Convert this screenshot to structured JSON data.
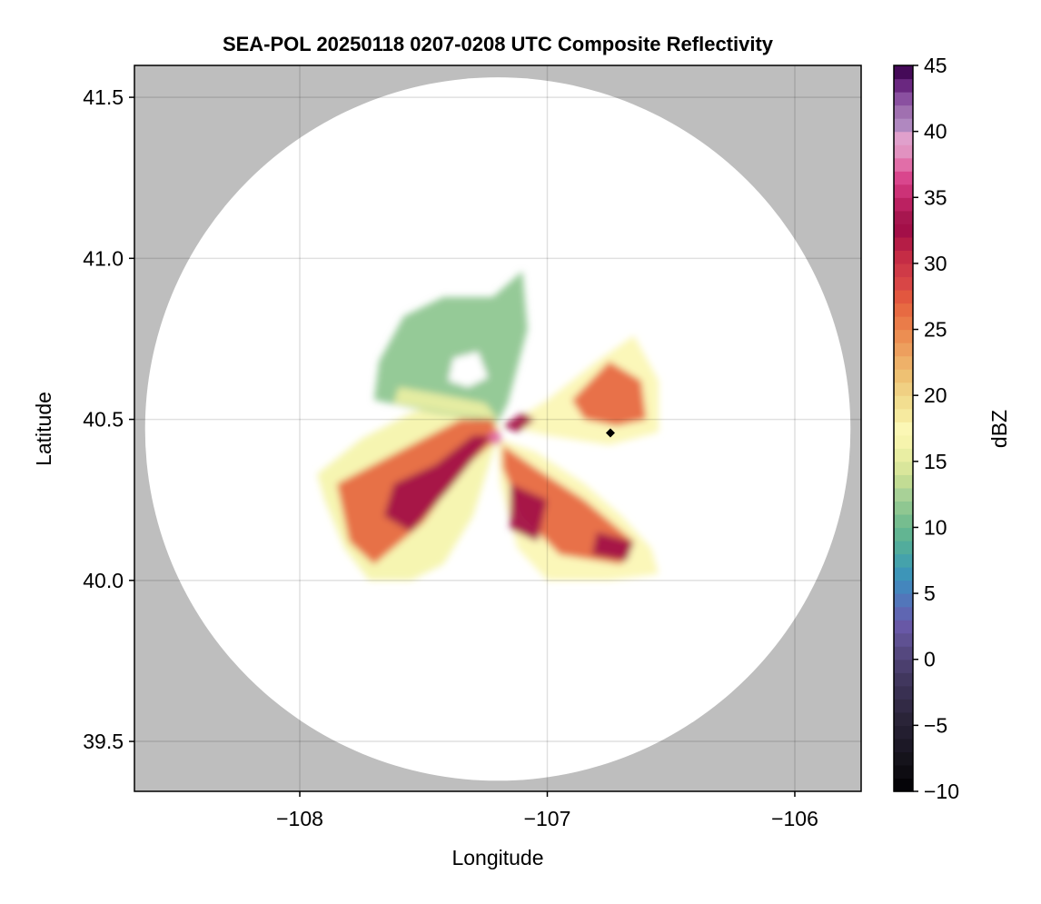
{
  "chart_data": {
    "type": "heatmap",
    "title": "SEA-POL 20250118 0207-0208 UTC Composite Reflectivity",
    "xlabel": "Longitude",
    "ylabel": "Latitude",
    "xlim": [
      -108.668,
      -105.732
    ],
    "ylim": [
      39.345,
      41.599
    ],
    "xticks": [
      -108,
      -107,
      -106
    ],
    "xtick_labels": [
      "−108",
      "−107",
      "−106"
    ],
    "yticks": [
      39.5,
      40.0,
      40.5,
      41.0,
      41.5
    ],
    "ytick_labels": [
      "39.5",
      "40.0",
      "40.5",
      "41.0",
      "41.5"
    ],
    "grid": true,
    "background_color": "#bebebe",
    "radar": {
      "center_lon": -107.2,
      "center_lat": 40.47,
      "range_lon_deg": 1.425,
      "range_lat_deg": 1.092
    },
    "marker": {
      "lon": -106.745,
      "lat": 40.458,
      "shape": "diamond",
      "color": "#000000"
    },
    "colorbar": {
      "label": "dBZ",
      "range": [
        -10,
        45
      ],
      "ticks": [
        -10,
        -5,
        0,
        5,
        10,
        15,
        20,
        25,
        30,
        35,
        40,
        45
      ],
      "tick_labels": [
        "−10",
        "−5",
        "0",
        "5",
        "10",
        "15",
        "20",
        "25",
        "30",
        "35",
        "40",
        "45"
      ],
      "colors": [
        "#050408",
        "#0e0c12",
        "#15131b",
        "#1c1826",
        "#231e30",
        "#2a2438",
        "#322a45",
        "#393052",
        "#41375e",
        "#4b3f6e",
        "#55487f",
        "#5f5192",
        "#6858a6",
        "#5f66b2",
        "#5276ba",
        "#4486bd",
        "#3d95b8",
        "#45a2ab",
        "#52ac9c",
        "#62b592",
        "#76bd8f",
        "#8fc791",
        "#a8d197",
        "#c2dc94",
        "#d9e69b",
        "#e9eea3",
        "#f6f4ad",
        "#fbf7b5",
        "#f6ea9f",
        "#f2de90",
        "#f0d083",
        "#eec173",
        "#eeb169",
        "#ed9f5e",
        "#ec8e52",
        "#ea7c49",
        "#e76a42",
        "#e2573f",
        "#d84646",
        "#cf3a47",
        "#c52c45",
        "#b51d46",
        "#a30f48",
        "#a7164f",
        "#bb2161",
        "#cc3277",
        "#d9468d",
        "#e16ea8",
        "#e192c0",
        "#e0a0cc",
        "#b088c0",
        "#a070b0",
        "#8a50a0",
        "#6a2880",
        "#450a58"
      ]
    },
    "echo_regions": [
      {
        "dbz": 16,
        "poly": [
          [
            -107.93,
            40.33
          ],
          [
            -107.75,
            40.44
          ],
          [
            -107.55,
            40.52
          ],
          [
            -107.3,
            40.57
          ],
          [
            -107.19,
            40.47
          ],
          [
            -107.3,
            40.2
          ],
          [
            -107.42,
            40.05
          ],
          [
            -107.55,
            40.0
          ],
          [
            -107.72,
            40.0
          ],
          [
            -107.82,
            40.1
          ],
          [
            -107.9,
            40.25
          ]
        ]
      },
      {
        "dbz": 11,
        "poly": [
          [
            -107.68,
            40.68
          ],
          [
            -107.58,
            40.82
          ],
          [
            -107.42,
            40.88
          ],
          [
            -107.22,
            40.88
          ],
          [
            -107.1,
            40.96
          ],
          [
            -107.08,
            40.78
          ],
          [
            -107.16,
            40.55
          ],
          [
            -107.2,
            40.49
          ],
          [
            -107.45,
            40.52
          ],
          [
            -107.7,
            40.56
          ]
        ]
      },
      {
        "dbz": 15,
        "poly": [
          [
            -107.6,
            40.6
          ],
          [
            -107.45,
            40.58
          ],
          [
            -107.25,
            40.55
          ],
          [
            -107.2,
            40.5
          ],
          [
            -107.4,
            40.52
          ],
          [
            -107.62,
            40.55
          ]
        ]
      },
      {
        "dbz": 17,
        "poly": [
          [
            -107.2,
            40.44
          ],
          [
            -107.05,
            40.4
          ],
          [
            -106.85,
            40.3
          ],
          [
            -106.7,
            40.2
          ],
          [
            -106.58,
            40.1
          ],
          [
            -106.55,
            40.02
          ],
          [
            -106.75,
            40.0
          ],
          [
            -107.0,
            40.0
          ],
          [
            -107.12,
            40.1
          ],
          [
            -107.19,
            40.3
          ]
        ]
      },
      {
        "dbz": 17,
        "poly": [
          [
            -107.17,
            40.48
          ],
          [
            -107.0,
            40.56
          ],
          [
            -106.8,
            40.68
          ],
          [
            -106.65,
            40.76
          ],
          [
            -106.55,
            40.62
          ],
          [
            -106.55,
            40.46
          ],
          [
            -106.75,
            40.42
          ],
          [
            -107.0,
            40.45
          ]
        ]
      },
      {
        "dbz": 26,
        "poly": [
          [
            -107.85,
            40.3
          ],
          [
            -107.6,
            40.4
          ],
          [
            -107.35,
            40.5
          ],
          [
            -107.22,
            40.5
          ],
          [
            -107.2,
            40.44
          ],
          [
            -107.35,
            40.34
          ],
          [
            -107.5,
            40.18
          ],
          [
            -107.7,
            40.05
          ],
          [
            -107.8,
            40.12
          ]
        ]
      },
      {
        "dbz": 26,
        "poly": [
          [
            -107.18,
            40.42
          ],
          [
            -107.05,
            40.35
          ],
          [
            -106.85,
            40.25
          ],
          [
            -106.65,
            40.12
          ],
          [
            -106.7,
            40.05
          ],
          [
            -106.95,
            40.08
          ],
          [
            -107.1,
            40.2
          ],
          [
            -107.18,
            40.35
          ]
        ]
      },
      {
        "dbz": 26,
        "poly": [
          [
            -106.9,
            40.56
          ],
          [
            -106.75,
            40.68
          ],
          [
            -106.62,
            40.62
          ],
          [
            -106.6,
            40.5
          ],
          [
            -106.72,
            40.48
          ],
          [
            -106.85,
            40.5
          ]
        ]
      },
      {
        "dbz": 32,
        "poly": [
          [
            -107.62,
            40.3
          ],
          [
            -107.45,
            40.36
          ],
          [
            -107.3,
            40.45
          ],
          [
            -107.22,
            40.45
          ],
          [
            -107.4,
            40.28
          ],
          [
            -107.55,
            40.15
          ],
          [
            -107.66,
            40.2
          ]
        ]
      },
      {
        "dbz": 32,
        "poly": [
          [
            -107.15,
            40.3
          ],
          [
            -107.0,
            40.25
          ],
          [
            -107.04,
            40.12
          ],
          [
            -107.15,
            40.16
          ]
        ]
      },
      {
        "dbz": 32,
        "poly": [
          [
            -106.8,
            40.15
          ],
          [
            -106.65,
            40.12
          ],
          [
            -106.68,
            40.06
          ],
          [
            -106.82,
            40.08
          ]
        ]
      },
      {
        "dbz": 32,
        "poly": [
          [
            -107.18,
            40.48
          ],
          [
            -107.1,
            40.52
          ],
          [
            -107.05,
            40.5
          ],
          [
            -107.12,
            40.46
          ]
        ]
      },
      {
        "dbz": 37,
        "poly": [
          [
            -107.24,
            40.45
          ],
          [
            -107.2,
            40.47
          ],
          [
            -107.18,
            40.43
          ],
          [
            -107.22,
            40.42
          ]
        ]
      }
    ],
    "no_echo_holes": [
      {
        "poly": [
          [
            -107.4,
            40.62
          ],
          [
            -107.38,
            40.69
          ],
          [
            -107.28,
            40.71
          ],
          [
            -107.24,
            40.63
          ],
          [
            -107.32,
            40.6
          ]
        ]
      }
    ]
  }
}
